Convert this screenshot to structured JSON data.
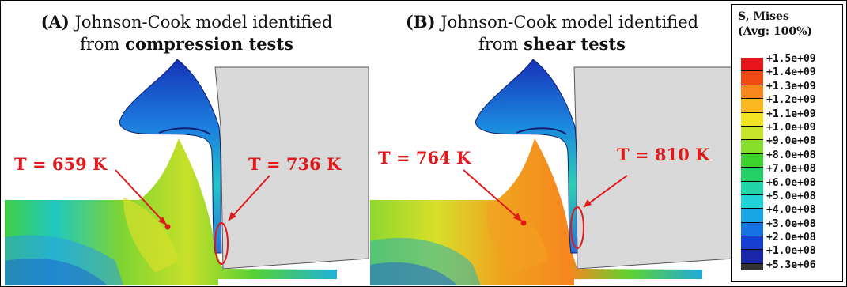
{
  "panels": [
    {
      "title_prefix": "(A)",
      "title_line1": "Johnson-Cook model identified",
      "title_line2_pre": "from",
      "title_line2_bold": "compression tests",
      "temp_left": "T = 659 K",
      "temp_right": "T = 736 K"
    },
    {
      "title_prefix": "(B)",
      "title_line1": "Johnson-Cook model identified",
      "title_line2_pre": "from",
      "title_line2_bold": "shear tests",
      "temp_left": "T = 764 K",
      "temp_right": "T = 810 K"
    }
  ],
  "legend": {
    "title_line1": "S, Mises",
    "title_line2": "(Avg: 100%)",
    "labels": [
      "+1.5e+09",
      "+1.4e+09",
      "+1.3e+09",
      "+1.2e+09",
      "+1.1e+09",
      "+1.0e+09",
      "+9.0e+08",
      "+8.0e+08",
      "+7.0e+08",
      "+6.0e+08",
      "+5.0e+08",
      "+4.0e+08",
      "+3.0e+08",
      "+2.0e+08",
      "+1.0e+08",
      "+5.3e+06"
    ],
    "colors": [
      "#e8141b",
      "#f04a14",
      "#f7861e",
      "#fbb820",
      "#f2e323",
      "#c8e628",
      "#86e02b",
      "#3dd32c",
      "#22d066",
      "#20d6a8",
      "#1fd3d9",
      "#18a6e6",
      "#1672e2",
      "#1540d2",
      "#1a27a8",
      "#333333"
    ]
  },
  "colors": {
    "annotation": "#e0191b",
    "tool": "#d9d9d9"
  }
}
